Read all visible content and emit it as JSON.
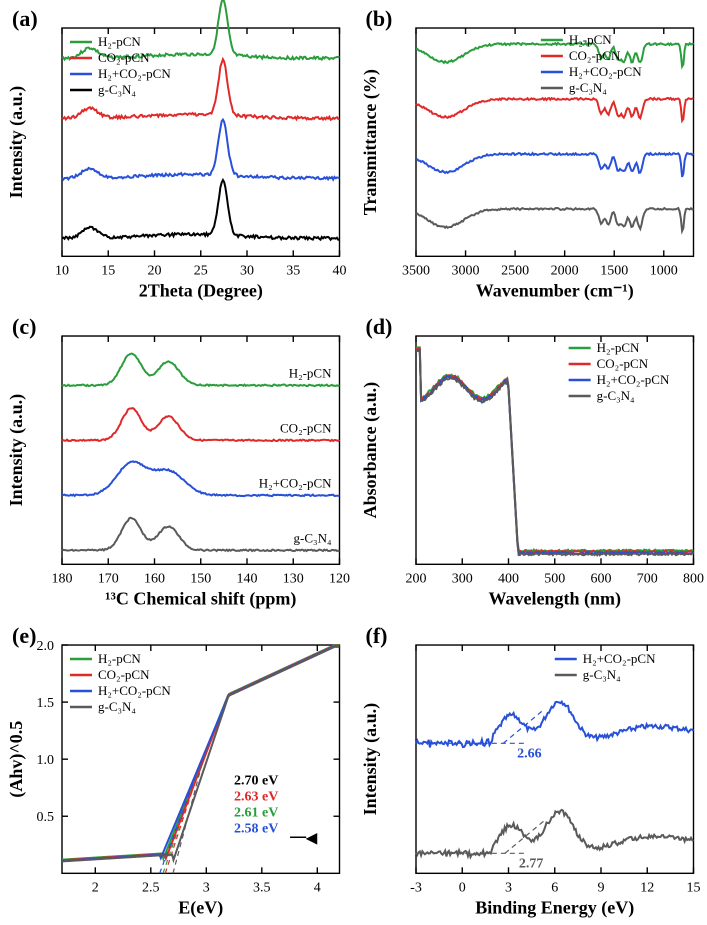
{
  "background_color": "#ffffff",
  "panel_label_color": "#000000",
  "axis_color": "#000000",
  "line_width": 2,
  "font_family": "Times New Roman",
  "colors": {
    "H2pCN": "#2a9d3c",
    "CO2pCN": "#e02a2a",
    "H2CO2pCN": "#2850d8",
    "gC3N4": "#5a5a5a",
    "black": "#000000"
  },
  "legend_order": [
    "H2pCN",
    "CO2pCN",
    "H2CO2pCN",
    "gC3N4"
  ],
  "legend_labels": {
    "H2pCN": "H₂-pCN",
    "CO2pCN": "CO₂-pCN",
    "H2CO2pCN": "H₂+CO₂-pCN",
    "gC3N4": "g-C₃N₄"
  },
  "panels": {
    "a": {
      "label": "(a)",
      "type": "line_stacked_xrd",
      "xlabel": "2Theta (Degree)",
      "ylabel": "Intensity (a.u.)",
      "xlim": [
        10,
        40
      ],
      "xticks": [
        10,
        15,
        20,
        25,
        30,
        35,
        40
      ],
      "series": [
        "H2pCN",
        "CO2pCN",
        "H2CO2pCN",
        "gC3N4"
      ],
      "series_colors_last": {
        "gC3N4": "black"
      },
      "peak_main_x": 27.4,
      "peak_minor_x": 13.0,
      "baseline_offsets": [
        3,
        2,
        1,
        0
      ],
      "offset_step": 60
    },
    "b": {
      "label": "(b)",
      "type": "line_stacked_ftir",
      "xlabel": "Wavenumber (cm⁻¹)",
      "ylabel": "Transmittance (%)",
      "xlim": [
        3500,
        700
      ],
      "xticks": [
        3500,
        3000,
        2500,
        2000,
        1500,
        1000
      ],
      "series": [
        "H2pCN",
        "CO2pCN",
        "H2CO2pCN",
        "gC3N4"
      ],
      "baseline_offsets": [
        3,
        2,
        1,
        0
      ],
      "offset_step": 55,
      "dip_regions": [
        {
          "range": [
            3400,
            3050
          ],
          "depth": 0.5
        },
        {
          "range": [
            1650,
            1200
          ],
          "depth": 1.0,
          "multi": true
        },
        {
          "range": [
            820,
            780
          ],
          "depth": 0.9
        }
      ]
    },
    "c": {
      "label": "(c)",
      "type": "line_stacked_nmr",
      "xlabel": "¹³C Chemical shift (ppm)",
      "ylabel": "Intensity (a.u.)",
      "xlim": [
        180,
        120
      ],
      "xticks": [
        180,
        170,
        160,
        150,
        140,
        130,
        120
      ],
      "series": [
        "H2pCN",
        "CO2pCN",
        "H2CO2pCN",
        "gC3N4"
      ],
      "inline_labels": true,
      "baseline_offsets": [
        3,
        2,
        1,
        0
      ],
      "offset_step": 55,
      "peak_centers": [
        165,
        157
      ]
    },
    "d": {
      "label": "(d)",
      "type": "line_overlay_uvvis",
      "xlabel": "Wavelength (nm)",
      "ylabel": "Absorbance (a.u.)",
      "xlim": [
        200,
        800
      ],
      "xticks": [
        200,
        300,
        400,
        500,
        600,
        700,
        800
      ],
      "series": [
        "H2pCN",
        "CO2pCN",
        "H2CO2pCN",
        "gC3N4"
      ],
      "edge_x": 420
    },
    "e": {
      "label": "(e)",
      "type": "line_overlay_tauc",
      "xlabel": "E(eV)",
      "ylabel": "(Ahv)^0.5",
      "xlim": [
        1.7,
        4.2
      ],
      "ylim": [
        0,
        2.0
      ],
      "xticks": [
        2.0,
        2.5,
        3.0,
        3.5,
        4.0
      ],
      "yticks": [
        0.5,
        1.0,
        1.5,
        2.0
      ],
      "series": [
        "H2pCN",
        "CO2pCN",
        "H2CO2pCN",
        "gC3N4"
      ],
      "intercepts": {
        "gC3N4": 2.7,
        "CO2pCN": 2.63,
        "H2pCN": 2.61,
        "H2CO2pCN": 2.58
      },
      "intercept_labels": [
        {
          "text": "2.70 eV",
          "color": "black"
        },
        {
          "text": "2.63 eV",
          "color": "CO2pCN"
        },
        {
          "text": "2.61 eV",
          "color": "H2pCN"
        },
        {
          "text": "2.58 eV",
          "color": "H2CO2pCN"
        }
      ],
      "arrow_text": "◀"
    },
    "f": {
      "label": "(f)",
      "type": "line_stacked_vbxps",
      "xlabel": "Binding Energy (eV)",
      "ylabel": "Intensity (a.u.)",
      "xlim": [
        -3,
        15
      ],
      "xticks": [
        -3,
        0,
        3,
        6,
        9,
        12,
        15
      ],
      "series": [
        "H2CO2pCN",
        "gC3N4"
      ],
      "baseline_offsets": [
        1,
        0
      ],
      "offset_step": 110,
      "onset_labels": {
        "H2CO2pCN": "2.66",
        "gC3N4": "2.77"
      }
    }
  }
}
